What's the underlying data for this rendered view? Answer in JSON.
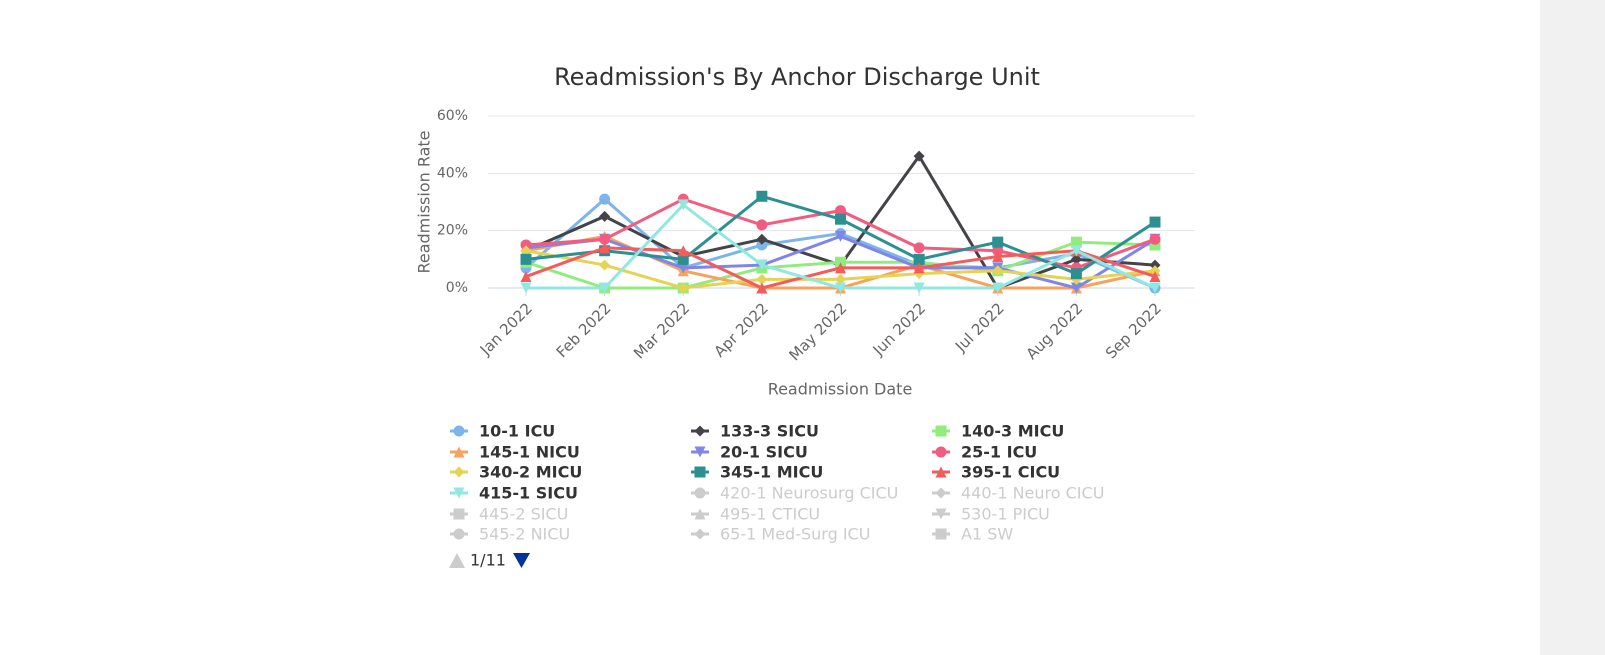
{
  "chart_data": {
    "type": "line",
    "title": "Readmission's By Anchor Discharge Unit",
    "x_label": "Readmission Date",
    "y_label": "Readmission Rate",
    "categories": [
      "Jan 2022",
      "Feb 2022",
      "Mar 2022",
      "Apr 2022",
      "May 2022",
      "Jun 2022",
      "Jul 2022",
      "Aug 2022",
      "Sep 2022"
    ],
    "ylim": [
      0,
      60
    ],
    "yticks": [
      {
        "value": 0,
        "label": "0%"
      },
      {
        "value": 20,
        "label": "20%"
      },
      {
        "value": 40,
        "label": "40%"
      },
      {
        "value": 60,
        "label": "60%"
      }
    ],
    "grid": true,
    "series": [
      {
        "name": "10-1 ICU",
        "color": "#7cb5ec",
        "values": [
          7,
          31,
          7,
          15,
          19,
          8,
          7,
          12,
          0
        ]
      },
      {
        "name": "133-3 SICU",
        "color": "#434348",
        "values": [
          13,
          25,
          11,
          17,
          8,
          46,
          0,
          10,
          8
        ]
      },
      {
        "name": "140-3 MICU",
        "color": "#90ed7d",
        "values": [
          9,
          0,
          0,
          7,
          9,
          9,
          6,
          16,
          15
        ]
      },
      {
        "name": "145-1 NICU",
        "color": "#f7a35c",
        "values": [
          13,
          18,
          6,
          0,
          0,
          8,
          0,
          0,
          6
        ]
      },
      {
        "name": "20-1 SICU",
        "color": "#8085e9",
        "values": [
          14,
          17,
          7,
          8,
          18,
          7,
          7,
          0,
          17
        ]
      },
      {
        "name": "25-1 ICU",
        "color": "#f15c80",
        "values": [
          15,
          17,
          31,
          22,
          27,
          14,
          13,
          7,
          17
        ]
      },
      {
        "name": "340-2 MICU",
        "color": "#e4d354",
        "values": [
          13,
          8,
          0,
          3,
          3,
          5,
          6,
          3,
          6
        ]
      },
      {
        "name": "345-1 MICU",
        "color": "#2b908f",
        "values": [
          10,
          13,
          10,
          32,
          24,
          10,
          16,
          5,
          23
        ]
      },
      {
        "name": "395-1 CICU",
        "color": "#f45b5b",
        "values": [
          4,
          14,
          13,
          0,
          7,
          7,
          11,
          13,
          4
        ]
      },
      {
        "name": "415-1 SICU",
        "color": "#91e8e1",
        "values": [
          0,
          0,
          29,
          8,
          0,
          0,
          0,
          13,
          0
        ]
      }
    ],
    "hidden_series": [
      "420-1 Neurosurg CICU",
      "440-1 Neuro CICU",
      "445-2 SICU",
      "495-1 CTICU",
      "530-1 PICU",
      "545-2 NICU",
      "65-1 Med-Surg ICU",
      "A1 SW"
    ],
    "legend_page": "1/11"
  }
}
